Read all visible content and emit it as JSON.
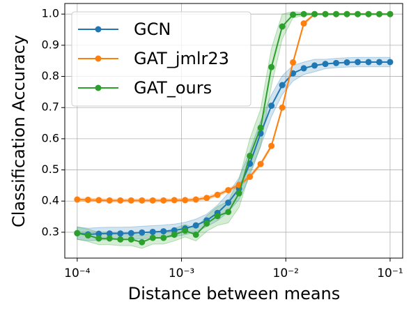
{
  "chart_data": {
    "type": "line",
    "xlabel": "Distance between means",
    "ylabel": "Classification Accuracy",
    "xscale": "log",
    "x": [
      0.0001,
      0.0001269,
      0.000161,
      0.0002043,
      0.0002593,
      0.000329,
      0.0004175,
      0.0005298,
      0.0006723,
      0.0008532,
      0.0010826,
      0.0013738,
      0.0017433,
      0.0022122,
      0.0028072,
      0.0035622,
      0.0045204,
      0.0057362,
      0.007279,
      0.0092367,
      0.011721,
      0.014874,
      0.018874,
      0.02395,
      0.030392,
      0.038566,
      0.048939,
      0.062102,
      0.078805,
      0.1
    ],
    "series": [
      {
        "name": "GCN",
        "color": "#1f77b4",
        "values": [
          0.297,
          0.293,
          0.295,
          0.296,
          0.296,
          0.297,
          0.299,
          0.301,
          0.303,
          0.306,
          0.312,
          0.322,
          0.338,
          0.362,
          0.395,
          0.44,
          0.52,
          0.617,
          0.706,
          0.772,
          0.81,
          0.826,
          0.835,
          0.84,
          0.843,
          0.845,
          0.846,
          0.846,
          0.846,
          0.846
        ],
        "errors": [
          0.02,
          0.02,
          0.02,
          0.02,
          0.02,
          0.02,
          0.02,
          0.02,
          0.02,
          0.02,
          0.02,
          0.02,
          0.02,
          0.025,
          0.03,
          0.035,
          0.04,
          0.04,
          0.035,
          0.03,
          0.025,
          0.02,
          0.02,
          0.015,
          0.015,
          0.015,
          0.015,
          0.015,
          0.015,
          0.015
        ]
      },
      {
        "name": "GAT_jmlr23",
        "color": "#ff7f0e",
        "values": [
          0.405,
          0.404,
          0.403,
          0.402,
          0.402,
          0.402,
          0.402,
          0.402,
          0.402,
          0.403,
          0.403,
          0.405,
          0.41,
          0.42,
          0.435,
          0.452,
          0.478,
          0.519,
          0.577,
          0.7,
          0.845,
          0.97,
          1,
          1,
          1,
          1,
          1,
          1,
          1,
          1
        ],
        "errors": [
          0.005,
          0.005,
          0.005,
          0.005,
          0.005,
          0.005,
          0.005,
          0.005,
          0.005,
          0.005,
          0.005,
          0.005,
          0.005,
          0.005,
          0.005,
          0.005,
          0.005,
          0.005,
          0.005,
          0.005,
          0.005,
          0.005,
          0.002,
          0.002,
          0.002,
          0.002,
          0.002,
          0.002,
          0.002,
          0.002
        ]
      },
      {
        "name": "GAT_ours",
        "color": "#2ca02c",
        "values": [
          0.297,
          0.29,
          0.28,
          0.28,
          0.277,
          0.277,
          0.268,
          0.282,
          0.282,
          0.292,
          0.305,
          0.292,
          0.328,
          0.352,
          0.365,
          0.425,
          0.545,
          0.635,
          0.83,
          0.96,
          0.998,
          1,
          1,
          1,
          1,
          1,
          1,
          1,
          1,
          1
        ],
        "errors": [
          0.02,
          0.02,
          0.02,
          0.02,
          0.02,
          0.02,
          0.02,
          0.02,
          0.02,
          0.02,
          0.02,
          0.02,
          0.025,
          0.03,
          0.035,
          0.045,
          0.055,
          0.06,
          0.06,
          0.04,
          0.01,
          0.005,
          0.002,
          0.002,
          0.002,
          0.002,
          0.002,
          0.002,
          0.002,
          0.002
        ]
      }
    ],
    "xlim": [
      7.6e-05,
      0.132
    ],
    "ylim": [
      0.217,
      1.034
    ],
    "xticks": [
      {
        "value": 0.0001,
        "label": "10⁻⁴"
      },
      {
        "value": 0.001,
        "label": "10⁻³"
      },
      {
        "value": 0.01,
        "label": "10⁻²"
      },
      {
        "value": 0.1,
        "label": "10⁻¹"
      }
    ],
    "yticks": [
      0.3,
      0.4,
      0.5,
      0.6,
      0.7,
      0.8,
      0.9,
      {
        "value": 1,
        "label": "1.0"
      }
    ],
    "grid": true,
    "legend": "upper left"
  }
}
